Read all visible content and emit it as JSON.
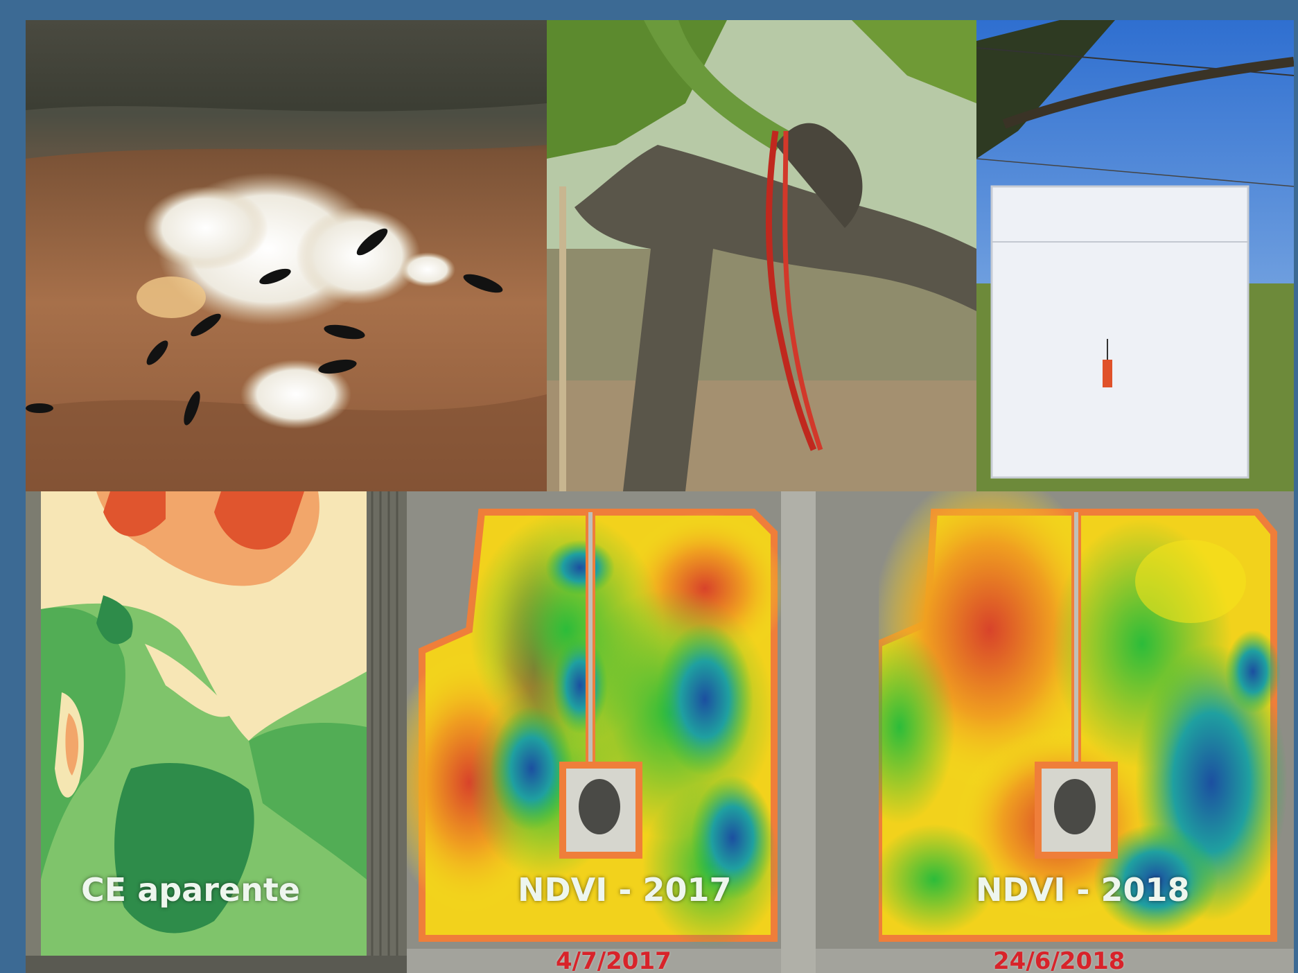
{
  "photos": {
    "ants": "ants tending mealybugs on vine trunk",
    "vine": "vine trunk with red plastic tie",
    "trap": "white sticky trap hanging on vineyard wire"
  },
  "maps": {
    "ce": {
      "label": "CE aparente"
    },
    "ndvi_2017": {
      "label": "NDVI - 2017",
      "date": "4/7/2017"
    },
    "ndvi_2018": {
      "label": "NDVI - 2018",
      "date": "24/6/2018"
    }
  },
  "colors": {
    "background": "#3c6a94",
    "date_text": "#d8232a",
    "ndvi_low": "#d8432a",
    "ndvi_mid": "#f5e21a",
    "ndvi_high": "#1c4fa0",
    "ce_dark": "#2e8c4a",
    "ce_light": "#f5e0b0"
  }
}
